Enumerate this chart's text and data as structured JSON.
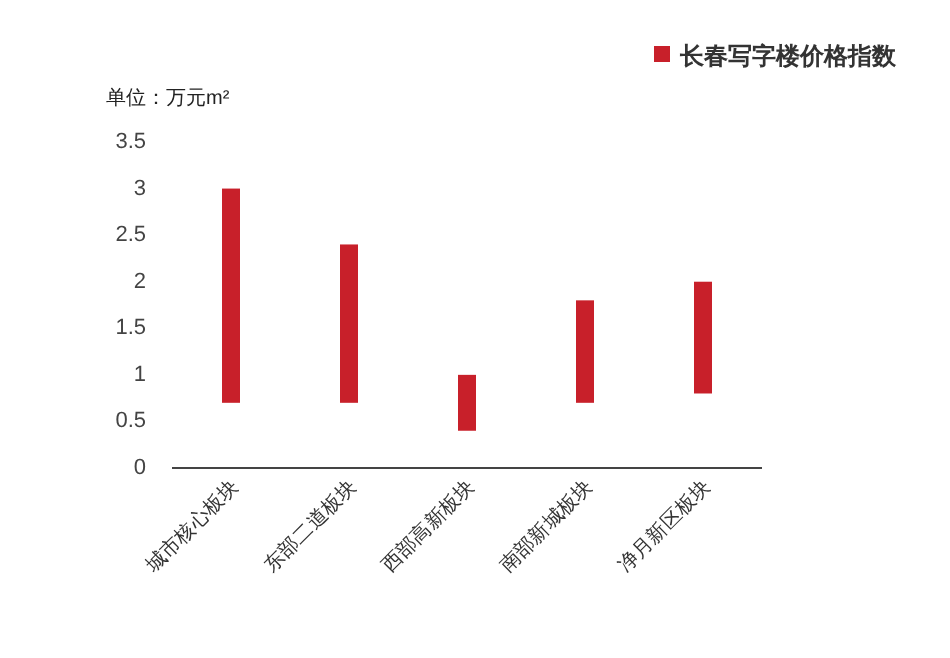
{
  "chart_data": {
    "type": "bar",
    "ylabel": "单位：万元m²",
    "categories": [
      "城市核心板块",
      "东部二道板块",
      "西部高新板块",
      "南部新城板块",
      "净月新区板块"
    ],
    "series": [
      {
        "name": "长春写字楼价格指数",
        "color": "#c8202a",
        "values": [
          2.3,
          1.7,
          0.6,
          1.1,
          1.2
        ],
        "base": [
          0.7,
          0.7,
          0.4,
          0.7,
          0.8
        ]
      }
    ],
    "ylim": [
      0,
      3.5
    ],
    "yticks": [
      0,
      0.5,
      1,
      1.5,
      2,
      2.5,
      3,
      3.5
    ],
    "grid": false,
    "legend": "top right"
  }
}
